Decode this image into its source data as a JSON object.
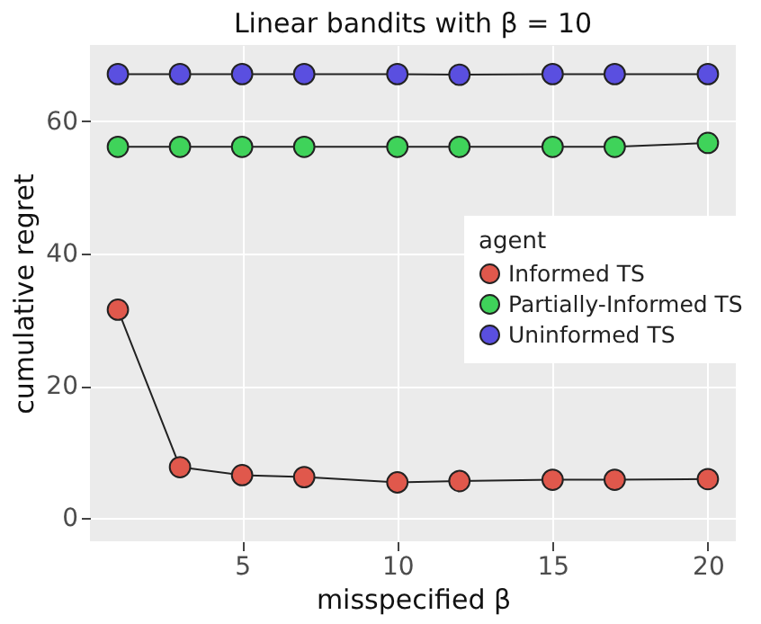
{
  "chart_data": {
    "type": "line",
    "title": "Linear bandits with β = 10",
    "xlabel": "misspecified β",
    "ylabel": "cumulative regret",
    "legend_title": "agent",
    "x": [
      1,
      3,
      5,
      7,
      10,
      12,
      15,
      17,
      20
    ],
    "series": [
      {
        "name": "Informed TS",
        "color": "#e0584c",
        "values": [
          31.5,
          7.7,
          6.5,
          6.2,
          5.4,
          5.6,
          5.8,
          5.8,
          5.9
        ]
      },
      {
        "name": "Partially-Informed TS",
        "color": "#3fd35a",
        "values": [
          56.1,
          56.1,
          56.1,
          56.1,
          56.1,
          56.1,
          56.1,
          56.1,
          56.7
        ]
      },
      {
        "name": "Uninformed TS",
        "color": "#5a4fe0",
        "values": [
          67.1,
          67.1,
          67.1,
          67.1,
          67.1,
          67,
          67.1,
          67.1,
          67.1
        ]
      }
    ],
    "xlim": [
      0.1,
      20.9
    ],
    "ylim": [
      -3.5,
      71.5
    ],
    "xticks": [
      5,
      10,
      15,
      20
    ],
    "yticks": [
      0,
      20,
      40,
      60
    ],
    "grid": true,
    "legend": "right",
    "marker": "circle",
    "line_style": "solid"
  }
}
